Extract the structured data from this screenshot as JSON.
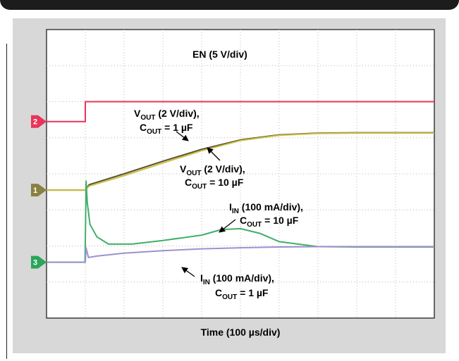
{
  "chart_data": {
    "type": "line",
    "xlabel": "Time (100 µs/div)",
    "grid": true,
    "x_divisions": 10,
    "y_divisions": 8,
    "series": [
      {
        "name": "EN",
        "label": "EN (5 V/div)",
        "channel": "2",
        "color": "#e8345a",
        "x": [
          0,
          1.0,
          1.0,
          10
        ],
        "y": [
          5.45,
          5.45,
          6.0,
          6.0
        ]
      },
      {
        "name": "VOUT, COUT = 1 µF",
        "label_main": "V",
        "label_sub": "OUT",
        "label_rest": " (2 V/div),",
        "label2_main": "C",
        "label2_sub": "OUT",
        "label2_rest": " = 1 µF",
        "channel": "1",
        "color": "#5a5030",
        "x": [
          0,
          1.0,
          1.1,
          2.0,
          3.0,
          4.0,
          5.0,
          6.0,
          7.0,
          8.0,
          9.0,
          10
        ],
        "y": [
          3.55,
          3.55,
          3.7,
          4.0,
          4.35,
          4.68,
          4.94,
          5.08,
          5.13,
          5.14,
          5.14,
          5.14
        ]
      },
      {
        "name": "VOUT, COUT = 10 µF",
        "label_main": "V",
        "label_sub": "OUT",
        "label_rest": " (2 V/div),",
        "label2_main": "C",
        "label2_sub": "OUT",
        "label2_rest": " = 10 µF",
        "color": "#c8c040",
        "x": [
          0,
          1.0,
          1.1,
          2.0,
          3.0,
          4.0,
          5.0,
          6.0,
          7.0,
          8.0,
          9.0,
          10
        ],
        "y": [
          3.55,
          3.55,
          3.66,
          3.95,
          4.3,
          4.64,
          4.92,
          5.07,
          5.12,
          5.13,
          5.13,
          5.13
        ]
      },
      {
        "name": "IIN, COUT = 10 µF",
        "label_main": "I",
        "label_sub": "IN",
        "label_rest": " (100 mA/div),",
        "label2_main": "C",
        "label2_sub": "OUT",
        "label2_rest": " = 10 µF",
        "channel": "3",
        "color": "#3fae6a",
        "x": [
          0,
          0.99,
          1.0,
          1.02,
          1.05,
          1.12,
          1.3,
          1.6,
          2.2,
          3.0,
          4.0,
          4.5,
          5.0,
          5.5,
          6.0,
          7.0,
          8.0,
          10
        ],
        "y": [
          1.55,
          1.55,
          2.1,
          3.8,
          3.2,
          2.6,
          2.25,
          2.05,
          2.05,
          2.15,
          2.3,
          2.45,
          2.48,
          2.35,
          2.12,
          1.98,
          1.97,
          1.97
        ]
      },
      {
        "name": "IIN, COUT = 1 µF",
        "label_main": "I",
        "label_sub": "IN",
        "label_rest": " (100 mA/div),",
        "label2_main": "C",
        "label2_sub": "OUT",
        "label2_rest": " = 1 µF",
        "color": "#9b92cf",
        "x": [
          0,
          1.0,
          1.02,
          1.08,
          1.3,
          2.0,
          3.0,
          4.0,
          5.0,
          6.0,
          7.0,
          8.0,
          10
        ],
        "y": [
          1.55,
          1.55,
          1.95,
          1.68,
          1.72,
          1.8,
          1.87,
          1.92,
          1.95,
          1.97,
          1.98,
          1.98,
          1.98
        ]
      }
    ],
    "channel_markers": [
      {
        "label": "2",
        "color": "#e8345a",
        "y": 5.45
      },
      {
        "label": "1",
        "color": "#8a8040",
        "y": 3.55
      },
      {
        "label": "3",
        "color": "#2aa55a",
        "y": 1.55
      }
    ]
  }
}
